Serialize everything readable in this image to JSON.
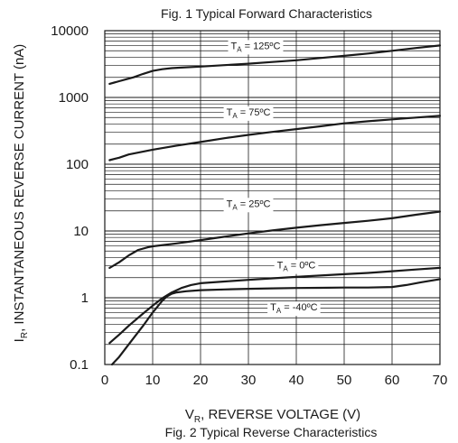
{
  "chart_data": {
    "type": "line",
    "top_caption": "Fig. 1  Typical Forward Characteristics",
    "title": "Fig. 2  Typical Reverse Characteristics",
    "xlabel_main": "V",
    "xlabel_sub": "R",
    "xlabel_rest": ", REVERSE VOLTAGE (V)",
    "ylabel_main": "I",
    "ylabel_sub": "R",
    "ylabel_rest": ", INSTANTANEOUS REVERSE CURRENT (nA)",
    "x_ticks": [
      "0",
      "10",
      "20",
      "30",
      "40",
      "50",
      "60",
      "70"
    ],
    "y_ticks": [
      "0.1",
      "1",
      "10",
      "100",
      "1000",
      "10000"
    ],
    "xlim": [
      0,
      70
    ],
    "ylim": [
      0.1,
      10000
    ],
    "y_scale": "log",
    "grid": true,
    "series": [
      {
        "name_main": "T",
        "name_sub": "A",
        "name_rest": " = 125ºC",
        "color": "#1a1a1a",
        "x": [
          1,
          3,
          6,
          8,
          10,
          12,
          14,
          16,
          20,
          25,
          30,
          35,
          40,
          45,
          50,
          55,
          60,
          65,
          70
        ],
        "y": [
          1600,
          1750,
          2000,
          2250,
          2500,
          2650,
          2750,
          2800,
          2900,
          3050,
          3200,
          3400,
          3600,
          3900,
          4200,
          4550,
          5000,
          5500,
          6000
        ]
      },
      {
        "name_main": "T",
        "name_sub": "A",
        "name_rest": " = 75ºC",
        "color": "#1a1a1a",
        "x": [
          1,
          3,
          5,
          10,
          15,
          20,
          25,
          30,
          35,
          40,
          45,
          50,
          55,
          60,
          65,
          70
        ],
        "y": [
          115,
          125,
          140,
          165,
          190,
          215,
          245,
          275,
          305,
          335,
          370,
          410,
          440,
          470,
          500,
          530
        ]
      },
      {
        "name_main": "T",
        "name_sub": "A",
        "name_rest": " = 25ºC",
        "color": "#1a1a1a",
        "x": [
          1,
          3,
          5,
          7,
          9,
          10,
          15,
          20,
          25,
          30,
          35,
          40,
          45,
          50,
          55,
          60,
          65,
          70
        ],
        "y": [
          2.8,
          3.4,
          4.3,
          5.2,
          5.7,
          5.9,
          6.5,
          7.3,
          8.2,
          9.2,
          10.2,
          11.2,
          12.2,
          13.2,
          14.2,
          15.5,
          17.5,
          19.5
        ]
      },
      {
        "name_main": "T",
        "name_sub": "A",
        "name_rest": " = 0ºC",
        "color": "#1a1a1a",
        "x": [
          1,
          3,
          5,
          8,
          10,
          12,
          14,
          16,
          18,
          20,
          25,
          30,
          35,
          40,
          45,
          50,
          55,
          60,
          65,
          70
        ],
        "y": [
          0.21,
          0.28,
          0.38,
          0.58,
          0.76,
          0.98,
          1.2,
          1.4,
          1.55,
          1.65,
          1.75,
          1.85,
          1.95,
          2.05,
          2.15,
          2.25,
          2.35,
          2.5,
          2.65,
          2.8
        ]
      },
      {
        "name_main": "T",
        "name_sub": "A",
        "name_rest": " = -40ºC",
        "color": "#1a1a1a",
        "x": [
          1.5,
          3,
          5,
          8,
          10,
          12,
          13,
          14,
          15,
          17,
          20,
          25,
          30,
          35,
          40,
          45,
          50,
          55,
          60,
          63,
          66,
          70
        ],
        "y": [
          0.09,
          0.13,
          0.2,
          0.38,
          0.6,
          0.9,
          1.05,
          1.15,
          1.2,
          1.25,
          1.3,
          1.33,
          1.36,
          1.38,
          1.4,
          1.41,
          1.42,
          1.42,
          1.45,
          1.55,
          1.7,
          1.9
        ]
      }
    ]
  }
}
